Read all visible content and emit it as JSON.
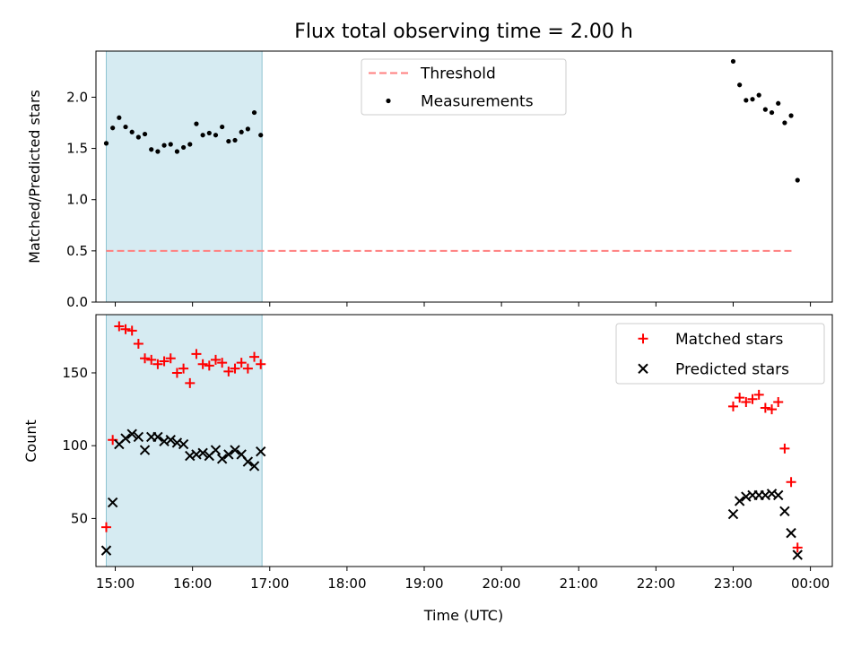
{
  "chart_data": [
    {
      "type": "scatter",
      "panel": "top",
      "title": "Flux total observing time = 2.00 h",
      "ylabel": "Matched/Predicted stars",
      "xlabel": "",
      "xlim": [
        "14:45",
        "00:17"
      ],
      "ylim": [
        0,
        2.45
      ],
      "x_ticks": [
        "15:00",
        "16:00",
        "17:00",
        "18:00",
        "19:00",
        "20:00",
        "21:00",
        "22:00",
        "23:00",
        "00:00"
      ],
      "y_ticks": [
        "0.0",
        "0.5",
        "1.0",
        "1.5",
        "2.0"
      ],
      "shaded_interval": [
        "14:53",
        "16:54"
      ],
      "legend": {
        "placement": "top-center",
        "entries": [
          "Threshold",
          "Measurements"
        ]
      },
      "threshold": {
        "name": "Threshold",
        "value": 0.5,
        "x": [
          "14:53",
          "23:48"
        ],
        "color": "#ff7f7f"
      },
      "series": [
        {
          "name": "Measurements",
          "color": "#000000",
          "points": [
            [
              "14:53",
              1.55
            ],
            [
              "14:58",
              1.7
            ],
            [
              "15:03",
              1.8
            ],
            [
              "15:08",
              1.71
            ],
            [
              "15:13",
              1.66
            ],
            [
              "15:18",
              1.61
            ],
            [
              "15:23",
              1.64
            ],
            [
              "15:28",
              1.49
            ],
            [
              "15:33",
              1.47
            ],
            [
              "15:38",
              1.53
            ],
            [
              "15:43",
              1.54
            ],
            [
              "15:48",
              1.47
            ],
            [
              "15:53",
              1.51
            ],
            [
              "15:58",
              1.54
            ],
            [
              "16:03",
              1.74
            ],
            [
              "16:08",
              1.63
            ],
            [
              "16:13",
              1.65
            ],
            [
              "16:18",
              1.63
            ],
            [
              "16:23",
              1.71
            ],
            [
              "16:28",
              1.57
            ],
            [
              "16:33",
              1.58
            ],
            [
              "16:38",
              1.66
            ],
            [
              "16:43",
              1.69
            ],
            [
              "16:48",
              1.85
            ],
            [
              "16:53",
              1.63
            ],
            [
              "23:00",
              2.35
            ],
            [
              "23:05",
              2.12
            ],
            [
              "23:10",
              1.97
            ],
            [
              "23:15",
              1.98
            ],
            [
              "23:20",
              2.02
            ],
            [
              "23:25",
              1.88
            ],
            [
              "23:30",
              1.85
            ],
            [
              "23:35",
              1.94
            ],
            [
              "23:40",
              1.75
            ],
            [
              "23:45",
              1.82
            ],
            [
              "23:50",
              1.19
            ]
          ]
        }
      ]
    },
    {
      "type": "scatter",
      "panel": "bottom",
      "title": "",
      "xlabel": "Time (UTC)",
      "ylabel": "Count",
      "xlim": [
        "14:45",
        "00:17"
      ],
      "ylim": [
        17,
        190
      ],
      "x_ticks": [
        "15:00",
        "16:00",
        "17:00",
        "18:00",
        "19:00",
        "20:00",
        "21:00",
        "22:00",
        "23:00",
        "00:00"
      ],
      "y_ticks": [
        "50",
        "100",
        "150"
      ],
      "shaded_interval": [
        "14:53",
        "16:54"
      ],
      "legend": {
        "placement": "top-right",
        "entries": [
          "Matched stars",
          "Predicted stars"
        ]
      },
      "series": [
        {
          "name": "Matched stars",
          "marker": "plus",
          "color": "#ff0000",
          "points": [
            [
              "14:53",
              44
            ],
            [
              "14:58",
              104
            ],
            [
              "15:03",
              182
            ],
            [
              "15:08",
              180
            ],
            [
              "15:13",
              179
            ],
            [
              "15:18",
              170
            ],
            [
              "15:23",
              160
            ],
            [
              "15:28",
              159
            ],
            [
              "15:33",
              156
            ],
            [
              "15:38",
              158
            ],
            [
              "15:43",
              160
            ],
            [
              "15:48",
              150
            ],
            [
              "15:53",
              153
            ],
            [
              "15:58",
              143
            ],
            [
              "16:03",
              163
            ],
            [
              "16:08",
              156
            ],
            [
              "16:13",
              155
            ],
            [
              "16:18",
              159
            ],
            [
              "16:23",
              157
            ],
            [
              "16:28",
              151
            ],
            [
              "16:33",
              153
            ],
            [
              "16:38",
              157
            ],
            [
              "16:43",
              153
            ],
            [
              "16:48",
              161
            ],
            [
              "16:53",
              156
            ],
            [
              "23:00",
              127
            ],
            [
              "23:05",
              133
            ],
            [
              "23:10",
              130
            ],
            [
              "23:15",
              132
            ],
            [
              "23:20",
              135
            ],
            [
              "23:25",
              126
            ],
            [
              "23:30",
              125
            ],
            [
              "23:35",
              130
            ],
            [
              "23:40",
              98
            ],
            [
              "23:45",
              75
            ],
            [
              "23:50",
              30
            ]
          ]
        },
        {
          "name": "Predicted stars",
          "marker": "x",
          "color": "#000000",
          "points": [
            [
              "14:53",
              28
            ],
            [
              "14:58",
              61
            ],
            [
              "15:03",
              101
            ],
            [
              "15:08",
              105
            ],
            [
              "15:13",
              108
            ],
            [
              "15:18",
              106
            ],
            [
              "15:23",
              97
            ],
            [
              "15:28",
              106
            ],
            [
              "15:33",
              106
            ],
            [
              "15:38",
              103
            ],
            [
              "15:43",
              104
            ],
            [
              "15:48",
              102
            ],
            [
              "15:53",
              101
            ],
            [
              "15:58",
              93
            ],
            [
              "16:03",
              94
            ],
            [
              "16:08",
              95
            ],
            [
              "16:13",
              93
            ],
            [
              "16:18",
              97
            ],
            [
              "16:23",
              91
            ],
            [
              "16:28",
              94
            ],
            [
              "16:33",
              97
            ],
            [
              "16:38",
              94
            ],
            [
              "16:43",
              89
            ],
            [
              "16:48",
              86
            ],
            [
              "16:53",
              96
            ],
            [
              "23:00",
              53
            ],
            [
              "23:05",
              62
            ],
            [
              "23:10",
              65
            ],
            [
              "23:15",
              66
            ],
            [
              "23:20",
              66
            ],
            [
              "23:25",
              66
            ],
            [
              "23:30",
              67
            ],
            [
              "23:35",
              66
            ],
            [
              "23:40",
              55
            ],
            [
              "23:45",
              40
            ],
            [
              "23:50",
              25
            ]
          ]
        }
      ]
    }
  ]
}
